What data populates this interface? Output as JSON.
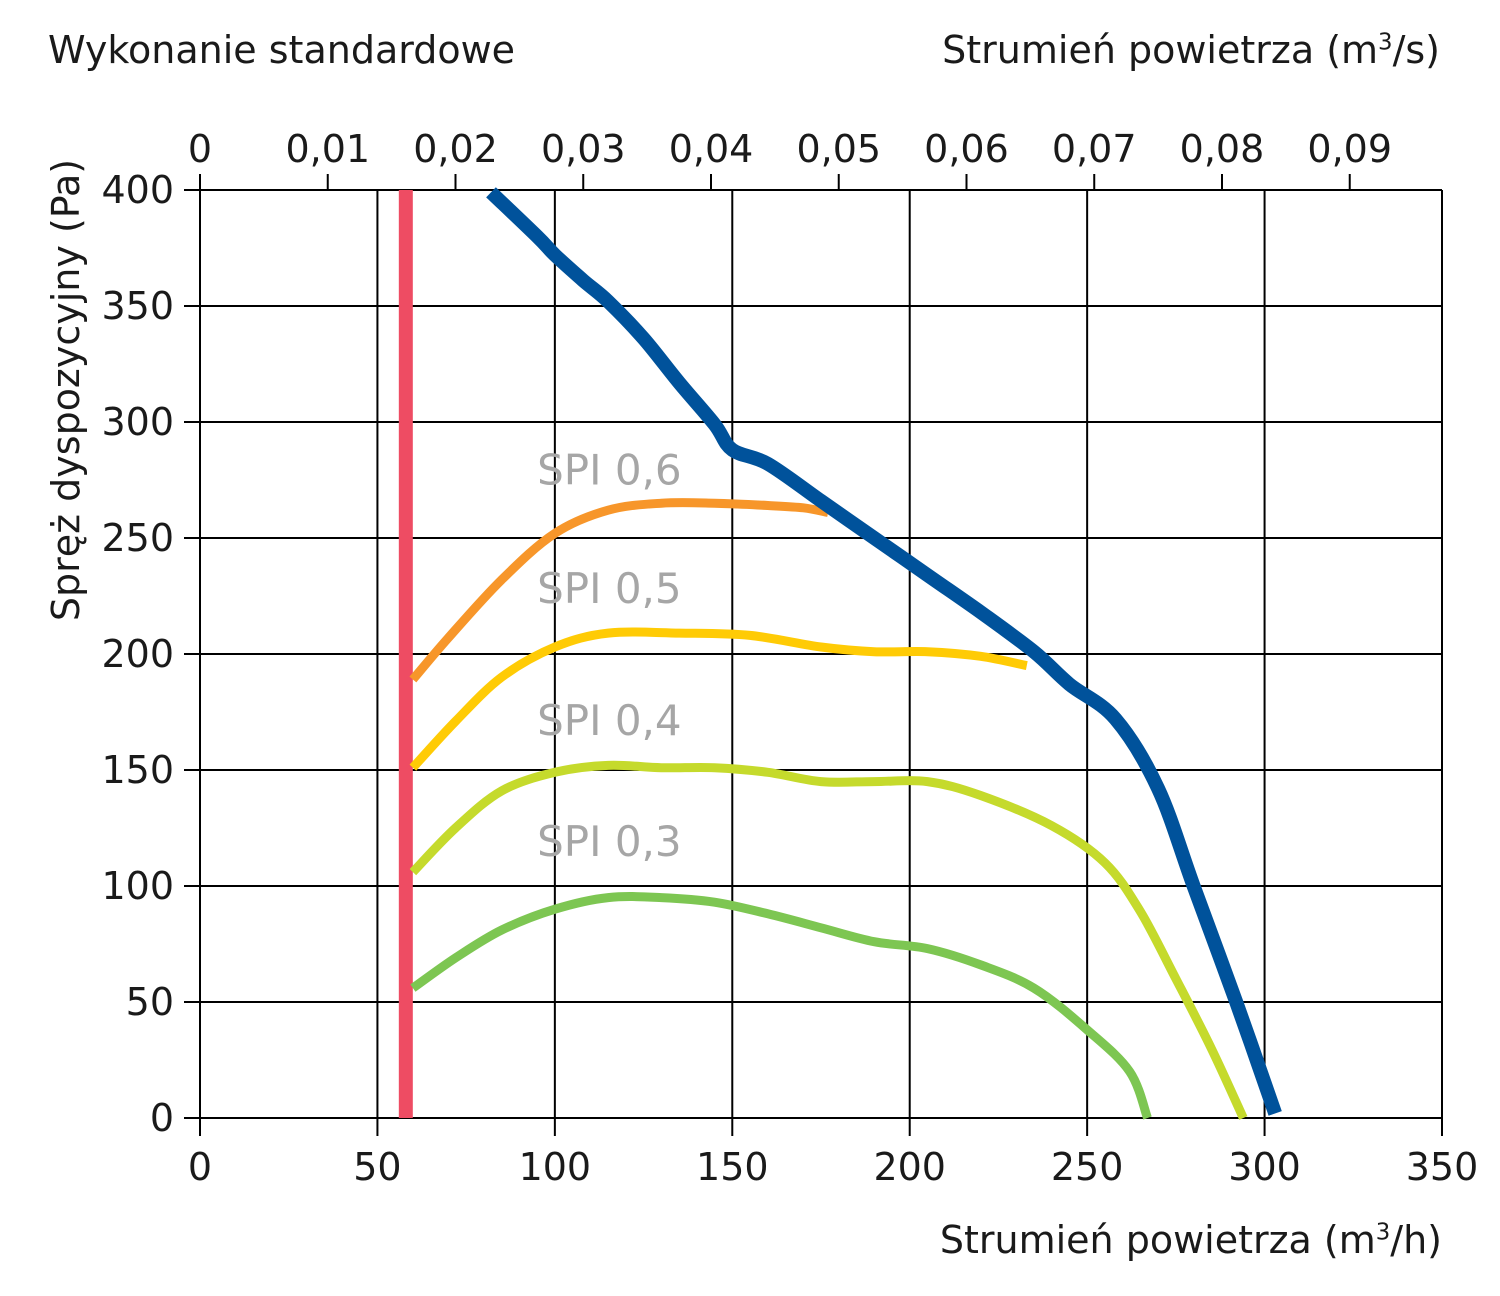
{
  "header": {
    "variant": "Wykonanie standardowe"
  },
  "chart_data": {
    "type": "line",
    "ylabel": "Spręż dyspozycyjny (Pa)",
    "xlabel_bottom": {
      "pre": "Strumień powietrza (m",
      "sup": "3",
      "post": "/h)"
    },
    "xlabel_top": {
      "pre": "Strumień powietrza (m",
      "sup": "3",
      "post": "/s)"
    },
    "xlim": [
      0,
      350
    ],
    "ylim": [
      0,
      400
    ],
    "x_ticks": [
      "0",
      "50",
      "100",
      "150",
      "200",
      "250",
      "300",
      "350"
    ],
    "y_ticks": [
      "0",
      "50",
      "100",
      "150",
      "200",
      "250",
      "300",
      "350",
      "400"
    ],
    "top_ticks": [
      "0",
      "0,01",
      "0,02",
      "0,03",
      "0,04",
      "0,05",
      "0,06",
      "0,07",
      "0,08",
      "0,09"
    ],
    "grid": true,
    "series": [
      {
        "color": "#00529b",
        "x": [
          82,
          95,
          100,
          108,
          115,
          125,
          135,
          145,
          150,
          160,
          175,
          190,
          205,
          220,
          235,
          245,
          258,
          270,
          280,
          292,
          303
        ],
        "y": [
          399,
          380,
          372,
          361,
          352,
          336,
          317,
          299,
          288,
          282,
          266,
          250,
          234,
          218,
          201,
          187,
          172,
          142,
          100,
          50,
          2
        ]
      },
      {
        "label": "SPI 0,6",
        "color": "#f7962a",
        "x": [
          60,
          70,
          85,
          100,
          115,
          130,
          145,
          160,
          170,
          177
        ],
        "y": [
          189,
          207,
          232,
          252,
          262,
          265,
          265,
          264,
          263,
          261
        ]
      },
      {
        "label": "SPI 0,5",
        "color": "#ffcb05",
        "x": [
          60,
          72,
          85,
          100,
          115,
          135,
          155,
          175,
          190,
          205,
          220,
          233
        ],
        "y": [
          151,
          171,
          190,
          203,
          209,
          209,
          208,
          203,
          201,
          201,
          199,
          195
        ]
      },
      {
        "label": "SPI 0,4",
        "color": "#c5da2c",
        "x": [
          60,
          72,
          85,
          100,
          115,
          130,
          145,
          160,
          175,
          190,
          205,
          220,
          240,
          255,
          265,
          275,
          285,
          294
        ],
        "y": [
          106,
          125,
          141,
          149,
          152,
          151,
          151,
          149,
          145,
          145,
          145,
          139,
          126,
          110,
          89,
          60,
          30,
          0
        ]
      },
      {
        "label": "SPI 0,3",
        "color": "#7dc652",
        "x": [
          60,
          72,
          85,
          100,
          115,
          130,
          145,
          160,
          175,
          190,
          205,
          220,
          235,
          250,
          262,
          267
        ],
        "y": [
          56,
          69,
          81,
          90,
          95,
          95,
          93,
          88,
          82,
          76,
          73,
          66,
          56,
          38,
          20,
          0
        ]
      }
    ],
    "reference_line": {
      "x": 58,
      "y_from": 0,
      "y_to": 400,
      "color": "#ee4c63"
    },
    "annotations": [
      {
        "text": "SPI 0,6",
        "x": 95,
        "y": 273,
        "color": "#a6a6a6"
      },
      {
        "text": "SPI 0,5",
        "x": 95,
        "y": 222,
        "color": "#a6a6a6"
      },
      {
        "text": "SPI 0,4",
        "x": 95,
        "y": 165,
        "color": "#a6a6a6"
      },
      {
        "text": "SPI 0,3",
        "x": 95,
        "y": 113,
        "color": "#a6a6a6"
      }
    ],
    "top_axis_factor": 3600
  }
}
